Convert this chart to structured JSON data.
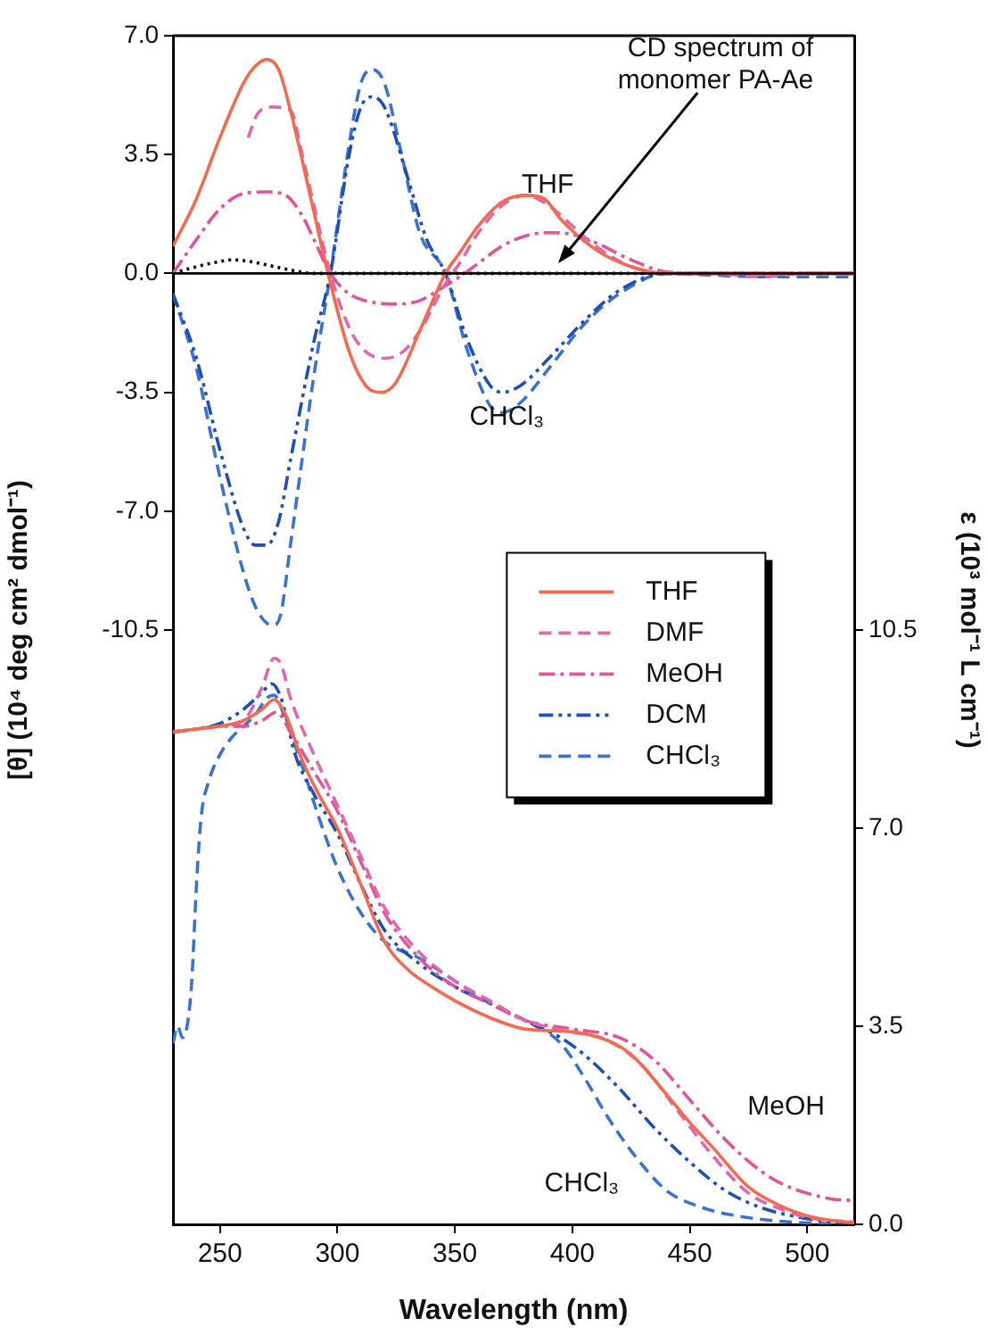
{
  "chart_data": {
    "type": "line",
    "xlabel": "Wavelength (nm)",
    "ylabel": "[θ] (10⁴ deg cm² dmol⁻¹)",
    "y2label": "ε (10³ mol⁻¹ L cm⁻¹)",
    "xlim": [
      230,
      520
    ],
    "xticks": [
      250,
      300,
      350,
      400,
      450,
      500
    ],
    "ylim": [
      -28,
      7
    ],
    "yticks": [
      {
        "value": 7,
        "label": "7.0"
      },
      {
        "value": 3.5,
        "label": "3.5"
      },
      {
        "value": 0,
        "label": "0.0"
      },
      {
        "value": -3.5,
        "label": "-3.5"
      },
      {
        "value": -7,
        "label": "-7.0"
      },
      {
        "value": -10.5,
        "label": "-10.5"
      }
    ],
    "y2lim": [
      0,
      21
    ],
    "y2ticks": [
      {
        "value": 0,
        "label": "0.0"
      },
      {
        "value": 3.5,
        "label": "3.5"
      },
      {
        "value": 7,
        "label": "7.0"
      },
      {
        "value": 10.5,
        "label": "10.5"
      }
    ],
    "grid": false,
    "legend": "right",
    "marker": "none",
    "ref_lines": [
      {
        "axis": "y",
        "value": 0,
        "color": "#000000",
        "line_style": "solid"
      }
    ],
    "annotations": [
      {
        "text": "CD spectrum of monomer PA-Ae",
        "x": 394,
        "y": 0.3
      },
      "THF",
      "CHCl₃",
      "MeOH",
      "CHCl₃"
    ],
    "series": [
      {
        "name": "THF",
        "color": "#f26a4f",
        "line_style": "solid",
        "x": [
          230,
          240,
          250,
          260,
          265,
          270,
          275,
          280,
          290,
          296,
          305,
          312,
          319,
          325,
          335,
          346,
          352,
          360,
          370,
          380,
          388,
          395,
          410,
          425,
          440,
          460,
          480,
          500,
          520
        ],
        "values": [
          0.8,
          2.2,
          4.0,
          5.6,
          6.1,
          6.3,
          6.0,
          4.8,
          1.8,
          0,
          -2.3,
          -3.3,
          -3.5,
          -3.2,
          -1.7,
          0,
          0.6,
          1.4,
          2.1,
          2.3,
          2.2,
          1.6,
          0.7,
          0.2,
          0,
          0,
          0,
          0,
          0
        ]
      },
      {
        "name": "DMF",
        "color": "#e066b0",
        "line_style": "dashed",
        "x": [
          262,
          266,
          272,
          280,
          285,
          290,
          297,
          305,
          312,
          320,
          328,
          335,
          346,
          352,
          360,
          370,
          380,
          390,
          400,
          410,
          425,
          440,
          460,
          480,
          500,
          520
        ],
        "values": [
          4.0,
          4.7,
          4.9,
          4.8,
          3.5,
          2.0,
          0,
          -1.6,
          -2.3,
          -2.5,
          -2.3,
          -1.7,
          -0.3,
          0.3,
          1.2,
          2.0,
          2.3,
          2.0,
          1.4,
          0.8,
          0.2,
          0,
          0,
          -0.1,
          0,
          0
        ]
      },
      {
        "name": "MeOH",
        "color": "#e0559a",
        "line_style": "dashdot",
        "x": [
          230,
          240,
          250,
          260,
          270,
          278,
          285,
          290,
          297,
          305,
          315,
          325,
          335,
          345,
          352,
          360,
          370,
          380,
          390,
          400,
          410,
          425,
          440,
          460,
          480,
          500,
          520
        ],
        "values": [
          0,
          1.0,
          1.9,
          2.35,
          2.4,
          2.3,
          1.7,
          1.0,
          0,
          -0.6,
          -0.85,
          -0.9,
          -0.8,
          -0.4,
          -0.1,
          0.3,
          0.8,
          1.1,
          1.2,
          1.15,
          0.9,
          0.4,
          0.05,
          0,
          0,
          0,
          0
        ]
      },
      {
        "name": "DCM",
        "color": "#1f4fb5",
        "line_style": "dashdotdot",
        "x": [
          230,
          240,
          250,
          260,
          265,
          270,
          275,
          280,
          290,
          297,
          305,
          310,
          315,
          320,
          330,
          338,
          346,
          355,
          365,
          370,
          378,
          390,
          405,
          420,
          440,
          460,
          480,
          500,
          520
        ],
        "values": [
          -0.6,
          -2.5,
          -5.2,
          -7.5,
          -8.0,
          -8.0,
          -7.3,
          -5.5,
          -2.0,
          0,
          3.5,
          4.9,
          5.2,
          4.9,
          2.8,
          1.0,
          0,
          -1.9,
          -3.3,
          -3.5,
          -3.3,
          -2.5,
          -1.4,
          -0.5,
          0,
          0,
          0,
          0,
          0
        ]
      },
      {
        "name": "CHCl₃",
        "color": "#3b72d0",
        "line_style": "dashed",
        "x": [
          230,
          240,
          250,
          260,
          265,
          270,
          273,
          276,
          280,
          290,
          297,
          305,
          310,
          315,
          320,
          327,
          335,
          346,
          355,
          365,
          370,
          378,
          390,
          405,
          420,
          440,
          460,
          480,
          500,
          520
        ],
        "values": [
          -0.6,
          -2.8,
          -6.0,
          -8.8,
          -9.8,
          -10.3,
          -10.35,
          -10.0,
          -8.0,
          -3.0,
          0,
          3.8,
          5.6,
          6.0,
          5.6,
          3.6,
          1.2,
          0,
          -2.2,
          -3.9,
          -4.1,
          -3.8,
          -2.8,
          -1.5,
          -0.6,
          0,
          -0.05,
          -0.1,
          -0.1,
          -0.1
        ]
      },
      {
        "color": "#000000",
        "line_style": "dotted",
        "x": [
          230,
          240,
          250,
          255,
          260,
          270,
          280,
          290,
          300,
          350,
          400,
          450,
          520
        ],
        "values": [
          0,
          0.2,
          0.35,
          0.4,
          0.38,
          0.25,
          0.1,
          0,
          0,
          0,
          0,
          0,
          0
        ]
      },
      {
        "color": "#f26a4f",
        "line_style": "solid",
        "axis": "y2",
        "x": [
          230,
          240,
          250,
          260,
          268,
          273,
          278,
          285,
          292,
          300,
          310,
          320,
          330,
          340,
          350,
          365,
          380,
          400,
          415,
          425,
          440,
          450,
          460,
          475,
          490,
          500,
          510,
          520
        ],
        "values": [
          8.7,
          8.75,
          8.8,
          8.9,
          9.1,
          9.27,
          9.0,
          8.2,
          7.6,
          7.0,
          6.0,
          5.0,
          4.5,
          4.2,
          3.95,
          3.65,
          3.45,
          3.4,
          3.25,
          3.0,
          2.3,
          1.8,
          1.35,
          0.66,
          0.3,
          0.15,
          0.07,
          0.03
        ]
      },
      {
        "color": "#e066b0",
        "line_style": "dashed",
        "axis": "y2",
        "x": [
          230,
          240,
          250,
          260,
          268,
          273,
          276,
          280,
          290,
          300,
          310,
          320,
          335,
          350,
          365,
          380,
          400,
          415,
          430,
          445,
          460,
          475,
          490,
          500,
          520
        ],
        "values": [
          8.7,
          8.75,
          8.8,
          8.9,
          9.5,
          10.0,
          9.9,
          9.3,
          8.3,
          7.4,
          6.5,
          5.6,
          4.8,
          4.3,
          3.95,
          3.6,
          3.4,
          3.25,
          2.8,
          2.0,
          1.2,
          0.55,
          0.25,
          0.12,
          0.04
        ]
      },
      {
        "color": "#e0559a",
        "line_style": "dashdot",
        "axis": "y2",
        "x": [
          230,
          240,
          250,
          260,
          268,
          274,
          280,
          290,
          300,
          310,
          320,
          335,
          350,
          365,
          380,
          400,
          420,
          435,
          450,
          465,
          480,
          490,
          500,
          510,
          520
        ],
        "values": [
          8.7,
          8.75,
          8.8,
          8.8,
          8.9,
          9.05,
          8.7,
          8.0,
          7.3,
          6.4,
          5.5,
          4.7,
          4.2,
          3.9,
          3.6,
          3.45,
          3.3,
          2.9,
          2.2,
          1.5,
          0.95,
          0.7,
          0.55,
          0.45,
          0.42
        ]
      },
      {
        "color": "#1f4fb5",
        "line_style": "dashdotdot",
        "axis": "y2",
        "x": [
          230,
          240,
          250,
          260,
          268,
          272,
          276,
          282,
          290,
          300,
          310,
          320,
          335,
          350,
          365,
          380,
          395,
          405,
          420,
          435,
          450,
          465,
          480,
          500,
          520
        ],
        "values": [
          8.7,
          8.75,
          8.85,
          9.1,
          9.4,
          9.55,
          9.3,
          8.3,
          7.6,
          6.9,
          6.0,
          5.2,
          4.6,
          4.2,
          3.9,
          3.6,
          3.3,
          3.0,
          2.4,
          1.7,
          1.1,
          0.6,
          0.3,
          0.1,
          0.0
        ]
      },
      {
        "color": "#3b72d0",
        "line_style": "dashed",
        "axis": "y2",
        "x": [
          230,
          232,
          234,
          236,
          238,
          240,
          242,
          245,
          250,
          255,
          260,
          265,
          270,
          273,
          278,
          285,
          292,
          300,
          310,
          320,
          335,
          350,
          365,
          380,
          395,
          405,
          415,
          425,
          440,
          455,
          470,
          490,
          520
        ],
        "values": [
          3.2,
          3.5,
          3.3,
          3.5,
          4.3,
          6.0,
          7.2,
          7.8,
          8.3,
          8.6,
          8.8,
          9.0,
          9.3,
          9.35,
          8.9,
          8.1,
          7.2,
          6.3,
          5.5,
          5.0,
          4.7,
          4.3,
          3.9,
          3.6,
          3.2,
          2.6,
          1.9,
          1.3,
          0.6,
          0.3,
          0.15,
          0.05,
          0.0
        ]
      }
    ]
  }
}
